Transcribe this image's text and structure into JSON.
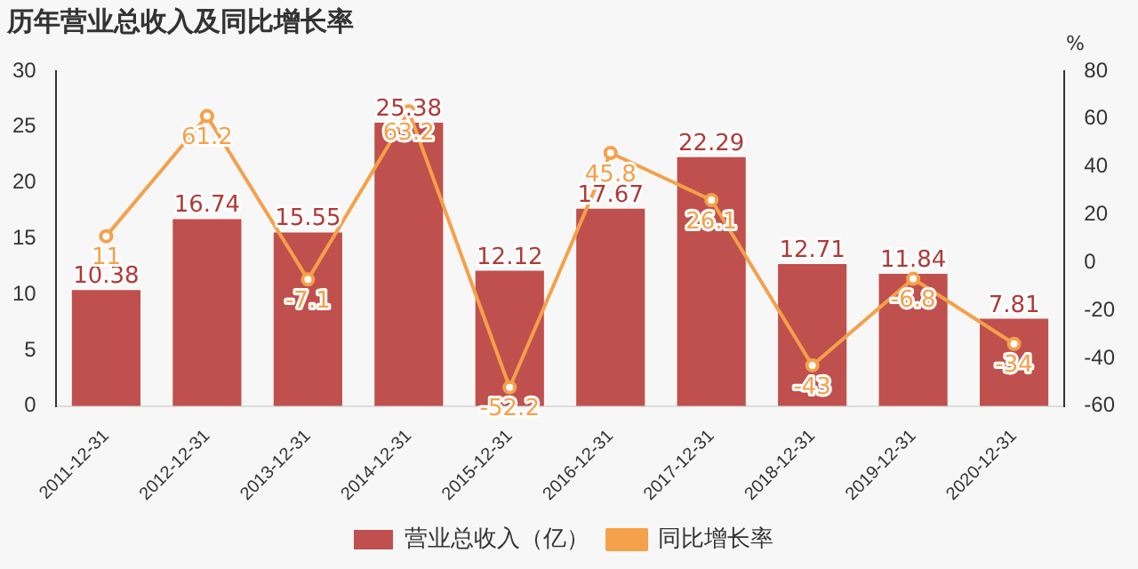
{
  "chart_data": {
    "type": "bar",
    "title": "历年营业总收入及同比增长率",
    "y2label": "%",
    "categories": [
      "2011-12-31",
      "2012-12-31",
      "2013-12-31",
      "2014-12-31",
      "2015-12-31",
      "2016-12-31",
      "2017-12-31",
      "2018-12-31",
      "2019-12-31",
      "2020-12-31"
    ],
    "series": [
      {
        "name": "营业总收入（亿）",
        "color": "#c0504d",
        "values": [
          10.38,
          16.74,
          15.55,
          25.38,
          12.12,
          17.67,
          22.29,
          12.71,
          11.84,
          7.81
        ]
      },
      {
        "name": "同比增长率",
        "type": "line",
        "axis": "y2",
        "color": "#f5a04a",
        "marker": "circle",
        "values": [
          11,
          61.2,
          -7.1,
          63.2,
          -52.2,
          45.8,
          26.1,
          -43,
          -6.8,
          -34
        ]
      }
    ],
    "ylim": [
      0,
      30
    ],
    "yticks": [
      0,
      5,
      10,
      15,
      20,
      25,
      30
    ],
    "y2lim": [
      -60,
      80
    ],
    "y2ticks": [
      -60,
      -40,
      -20,
      0,
      20,
      40,
      60,
      80
    ],
    "data_labels": true,
    "grid": false,
    "legend": "bottom"
  }
}
